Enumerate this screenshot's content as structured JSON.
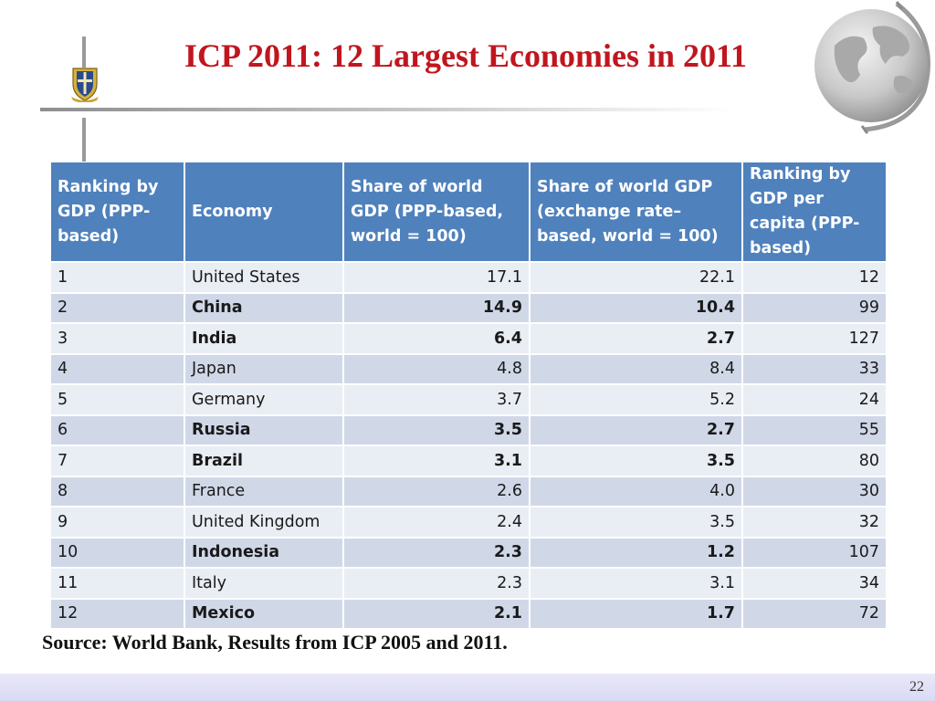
{
  "title": "ICP 2011: 12 Largest Economies in 2011",
  "table": {
    "headers": [
      "Ranking by GDP (PPP-based)",
      "Economy",
      "Share of world GDP (PPP-based, world = 100)",
      "Share of world GDP (exchange rate–based, world = 100)",
      "Ranking by GDP per capita (PPP-based)"
    ],
    "rows": [
      {
        "rank": "1",
        "economy": "United States",
        "ppp_share": "17.1",
        "er_share": "22.1",
        "pc_rank": "12",
        "highlight": false
      },
      {
        "rank": "2",
        "economy": "China",
        "ppp_share": "14.9",
        "er_share": "10.4",
        "pc_rank": "99",
        "highlight": true
      },
      {
        "rank": "3",
        "economy": "India",
        "ppp_share": "6.4",
        "er_share": "2.7",
        "pc_rank": "127",
        "highlight": true
      },
      {
        "rank": "4",
        "economy": "Japan",
        "ppp_share": "4.8",
        "er_share": "8.4",
        "pc_rank": "33",
        "highlight": false
      },
      {
        "rank": "5",
        "economy": "Germany",
        "ppp_share": "3.7",
        "er_share": "5.2",
        "pc_rank": "24",
        "highlight": false
      },
      {
        "rank": "6",
        "economy": "Russia",
        "ppp_share": "3.5",
        "er_share": "2.7",
        "pc_rank": "55",
        "highlight": true
      },
      {
        "rank": "7",
        "economy": "Brazil",
        "ppp_share": "3.1",
        "er_share": "3.5",
        "pc_rank": "80",
        "highlight": true
      },
      {
        "rank": "8",
        "economy": "France",
        "ppp_share": "2.6",
        "er_share": "4.0",
        "pc_rank": "30",
        "highlight": false
      },
      {
        "rank": "9",
        "economy": "United Kingdom",
        "ppp_share": "2.4",
        "er_share": "3.5",
        "pc_rank": "32",
        "highlight": false
      },
      {
        "rank": "10",
        "economy": "Indonesia",
        "ppp_share": "2.3",
        "er_share": "1.2",
        "pc_rank": "107",
        "highlight": true
      },
      {
        "rank": "11",
        "economy": "Italy",
        "ppp_share": "2.3",
        "er_share": "3.1",
        "pc_rank": "34",
        "highlight": false
      },
      {
        "rank": "12",
        "economy": "Mexico",
        "ppp_share": "2.1",
        "er_share": "1.7",
        "pc_rank": "72",
        "highlight": true
      }
    ]
  },
  "source": "Source: World Bank, Results from ICP 2005 and 2011.",
  "page_number": "22",
  "colors": {
    "title": "#c0161e",
    "header_bg": "#4f81bd",
    "row_light": "#e9edf4",
    "row_dark": "#d0d8e8"
  },
  "icons": {
    "crest": "university-crest-icon",
    "globe": "globe-icon"
  }
}
